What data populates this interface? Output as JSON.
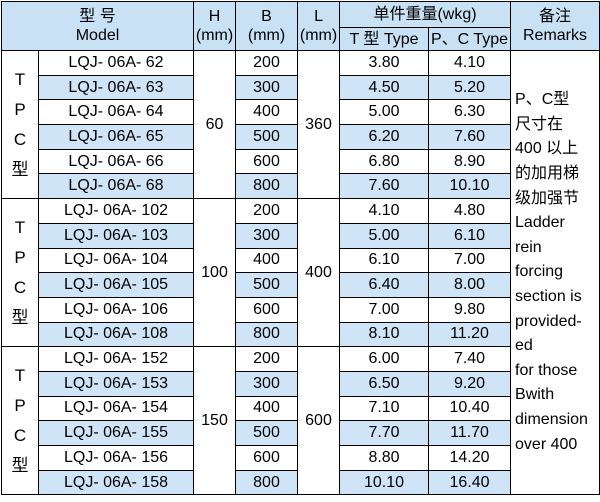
{
  "header": {
    "model_cn": "型  号",
    "model_en": "Model",
    "h": "H",
    "h_unit": "(mm)",
    "b": "B",
    "b_unit": "(mm)",
    "l": "L",
    "l_unit": "(mm)",
    "weight": "单件重量(wkg)",
    "t_type": "T 型 Type",
    "pc_type": "P、C Type",
    "remarks_cn": "备注",
    "remarks_en": "Remarks"
  },
  "groups": [
    {
      "label": [
        "T",
        "P",
        "C",
        "型"
      ],
      "h": "60",
      "l": "360",
      "rows": [
        [
          "LQJ- 06A- 62",
          "200",
          "3.80",
          "4.10"
        ],
        [
          "LQJ- 06A- 63",
          "300",
          "4.50",
          "5.20"
        ],
        [
          "LQJ- 06A- 64",
          "400",
          "5.00",
          "6.30"
        ],
        [
          "LQJ- 06A- 65",
          "500",
          "6.20",
          "7.60"
        ],
        [
          "LQJ- 06A- 66",
          "600",
          "6.80",
          "8.90"
        ],
        [
          "LQJ- 06A- 68",
          "800",
          "7.60",
          "10.10"
        ]
      ]
    },
    {
      "label": [
        "T",
        "P",
        "C",
        "型"
      ],
      "h": "100",
      "l": "400",
      "rows": [
        [
          "LQJ- 06A- 102",
          "200",
          "4.10",
          "4.80"
        ],
        [
          "LQJ- 06A- 103",
          "300",
          "5.00",
          "6.10"
        ],
        [
          "LQJ- 06A- 104",
          "400",
          "6.10",
          "7.00"
        ],
        [
          "LQJ- 06A- 105",
          "500",
          "6.40",
          "8.00"
        ],
        [
          "LQJ- 06A- 106",
          "600",
          "7.00",
          "9.80"
        ],
        [
          "LQJ- 06A- 108",
          "800",
          "8.10",
          "11.20"
        ]
      ]
    },
    {
      "label": [
        "T",
        "P",
        "C",
        "型"
      ],
      "h": "150",
      "l": "600",
      "rows": [
        [
          "LQJ- 06A- 152",
          "200",
          "6.00",
          "7.40"
        ],
        [
          "LQJ- 06A- 153",
          "300",
          "6.50",
          "9.20"
        ],
        [
          "LQJ- 06A- 154",
          "400",
          "7.10",
          "10.40"
        ],
        [
          "LQJ- 06A- 155",
          "500",
          "7.70",
          "11.70"
        ],
        [
          "LQJ- 06A- 156",
          "600",
          "8.80",
          "14.20"
        ],
        [
          "LQJ- 06A- 158",
          "800",
          "10.10",
          "16.40"
        ]
      ]
    }
  ],
  "remarks": [
    "P、C型",
    "尺寸在",
    "400 以上",
    "的加用梯",
    "级加强节",
    "Ladder",
    "rein",
    "forcing",
    "section is",
    "provided-",
    "ed",
    "for those",
    "Bwith",
    "dimension",
    "over 400"
  ]
}
